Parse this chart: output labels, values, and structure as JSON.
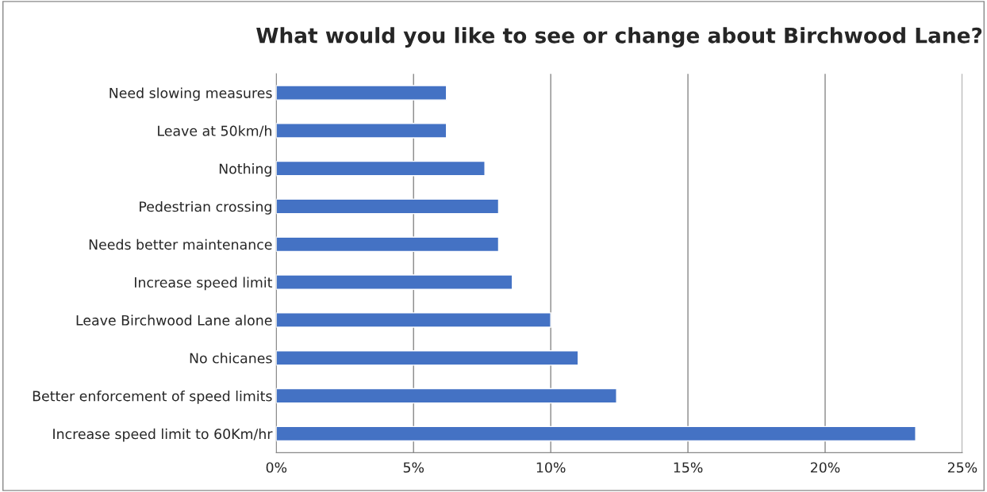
{
  "chart_data": {
    "type": "bar",
    "orientation": "horizontal",
    "title": "What would you like to see or change about Birchwood Lane?",
    "categories": [
      "Need slowing measures",
      "Leave at 50km/h",
      "Nothing",
      "Pedestrian crossing",
      "Needs better maintenance",
      "Increase speed limit",
      "Leave Birchwood Lane alone",
      "No chicanes",
      "Better enforcement of speed limits",
      "Increase speed limit to 60Km/hr"
    ],
    "values": [
      6.2,
      6.2,
      7.6,
      8.1,
      8.1,
      8.6,
      10.0,
      11.0,
      12.4,
      23.3
    ],
    "color": "#4472c4",
    "xlim": [
      0,
      25
    ],
    "xticks": [
      {
        "value": 0,
        "label": "0%"
      },
      {
        "value": 5,
        "label": "5%"
      },
      {
        "value": 10,
        "label": "10%"
      },
      {
        "value": 15,
        "label": "15%"
      },
      {
        "value": 20,
        "label": "20%"
      },
      {
        "value": 25,
        "label": "25%"
      }
    ],
    "grid": "x",
    "legend": false
  }
}
